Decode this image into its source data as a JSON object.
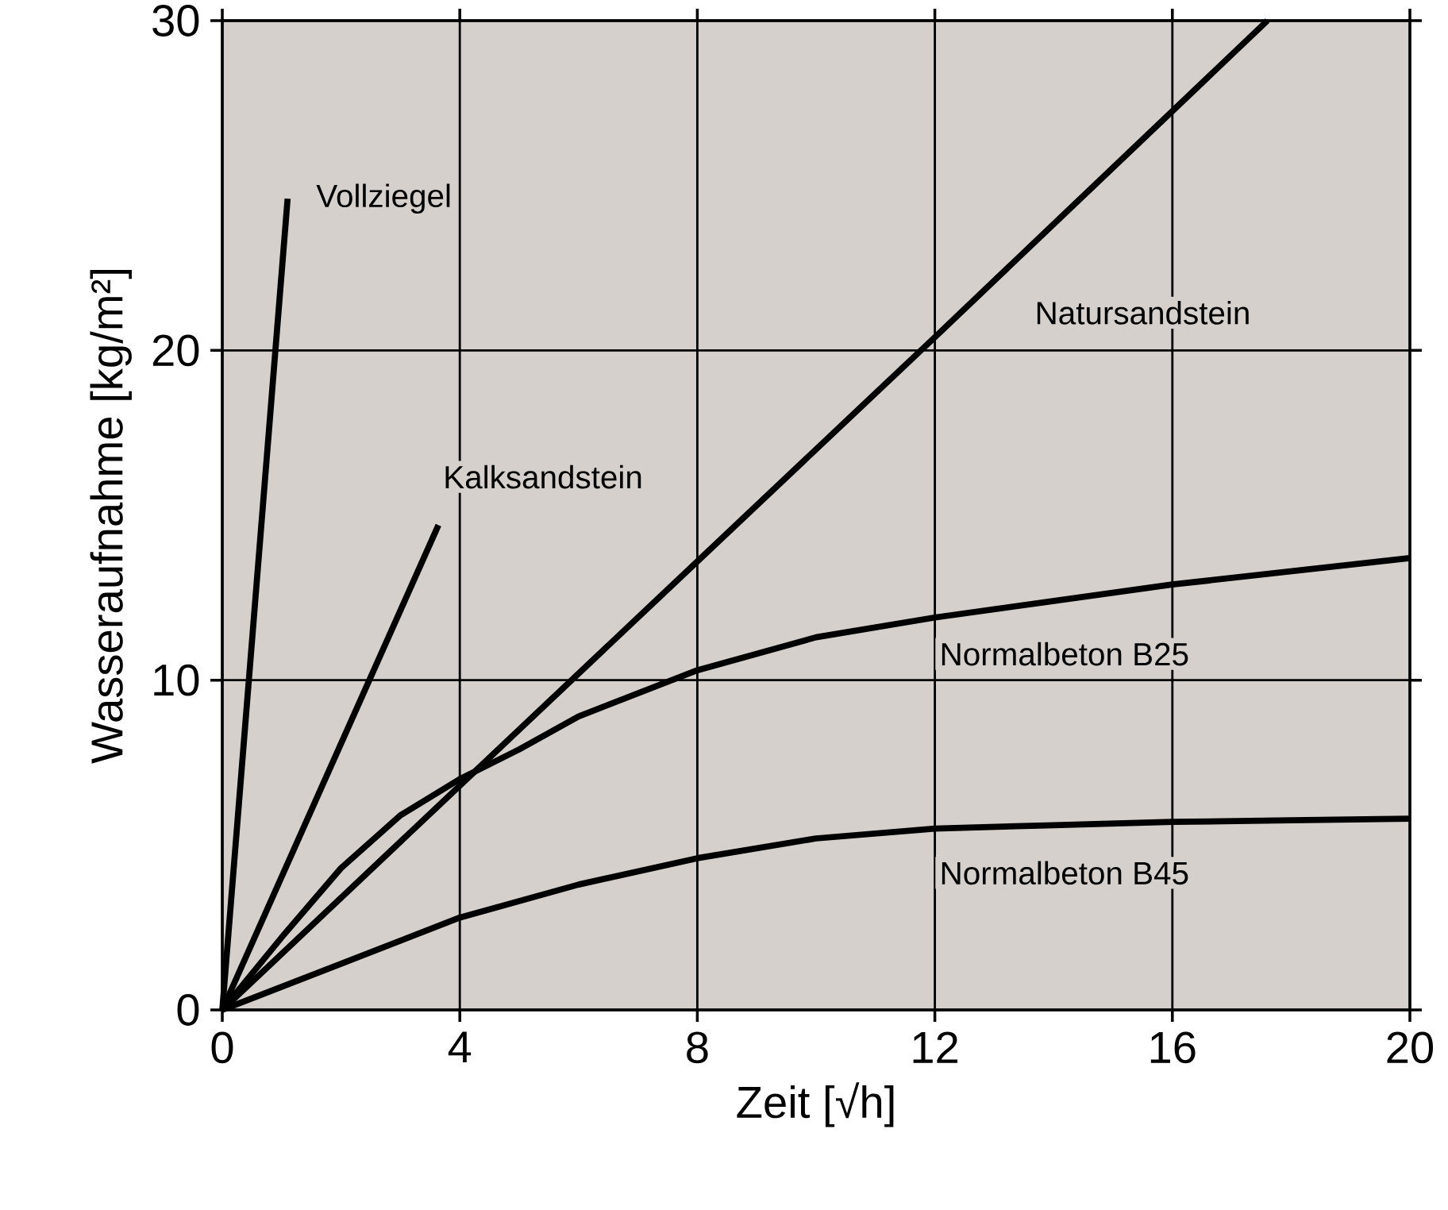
{
  "chart_data": {
    "type": "line",
    "xlabel": "Zeit [√h]",
    "ylabel": "Wasseraufnahme [kg/m²]",
    "xlim": [
      0,
      20
    ],
    "ylim": [
      0,
      30
    ],
    "xticks": [
      0,
      4,
      8,
      12,
      16,
      20
    ],
    "yticks": [
      0,
      10,
      20,
      30
    ],
    "grid": true,
    "marker": "none",
    "line_style": "solid",
    "series": [
      {
        "name": "Vollziegel",
        "color": "#000000",
        "x": [
          0,
          1.1
        ],
        "values": [
          0,
          24.6
        ]
      },
      {
        "name": "Kalksandstein",
        "color": "#000000",
        "x": [
          0,
          3.64
        ],
        "values": [
          0,
          14.7
        ]
      },
      {
        "name": "Natursandstein",
        "color": "#000000",
        "x": [
          0,
          12,
          17.6
        ],
        "values": [
          0,
          20.4,
          30
        ]
      },
      {
        "name": "Normalbeton B25",
        "color": "#000000",
        "x": [
          0,
          1,
          2,
          3,
          4,
          5,
          6,
          8,
          10,
          12,
          14,
          16,
          18,
          20
        ],
        "values": [
          0,
          2.2,
          4.3,
          5.9,
          7.0,
          7.9,
          8.9,
          10.3,
          11.3,
          11.9,
          12.4,
          12.9,
          13.3,
          13.7
        ]
      },
      {
        "name": "Normalbeton B45",
        "color": "#000000",
        "x": [
          0,
          2,
          4,
          6,
          8,
          10,
          12,
          14,
          16,
          18,
          20
        ],
        "values": [
          0,
          1.4,
          2.8,
          3.8,
          4.6,
          5.2,
          5.5,
          5.6,
          5.7,
          5.75,
          5.8
        ]
      }
    ]
  }
}
